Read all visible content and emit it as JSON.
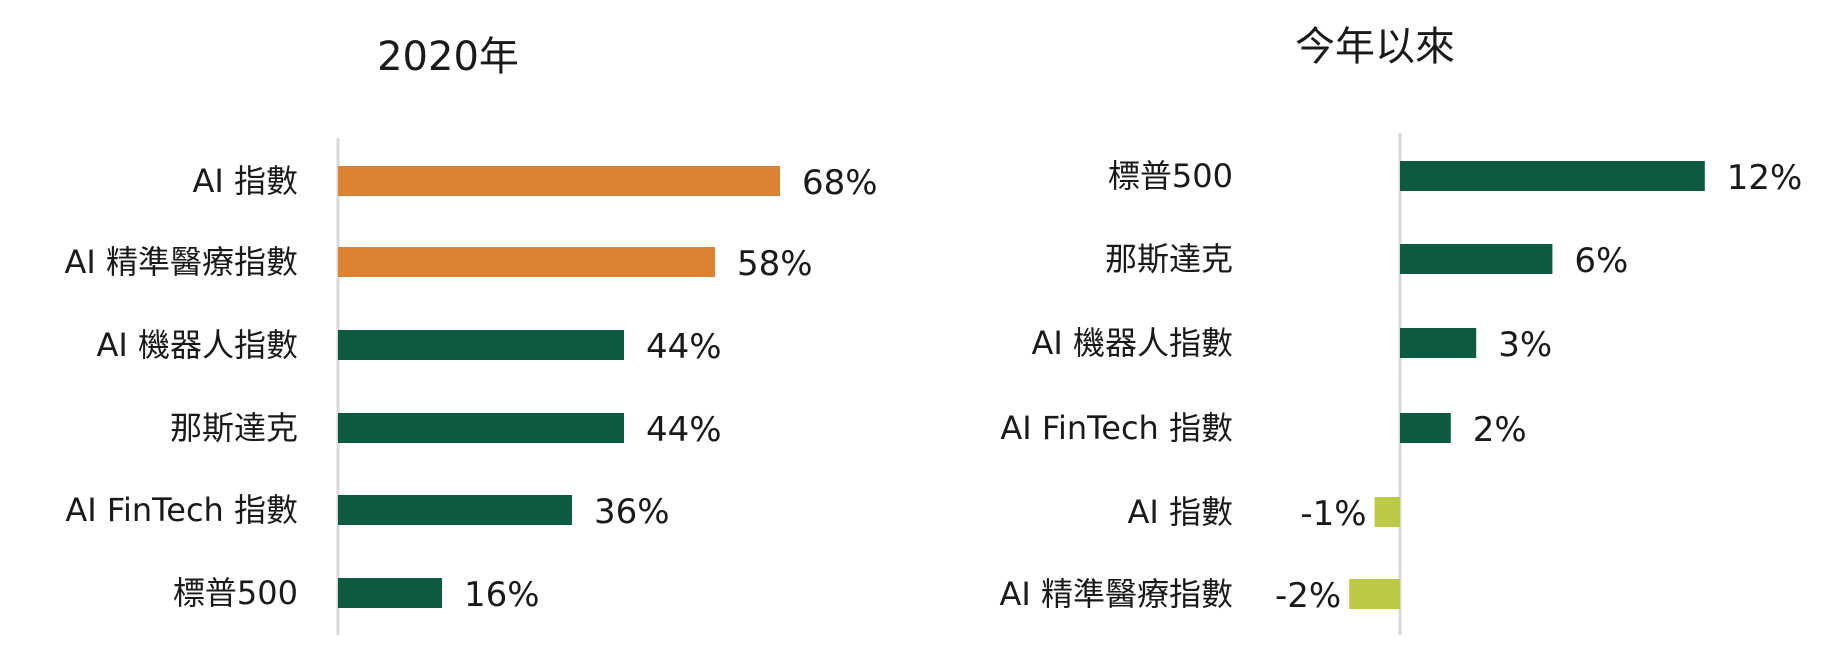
{
  "chart_data": [
    {
      "type": "bar",
      "orientation": "horizontal",
      "title": "2020年",
      "categories": [
        "AI 指數",
        "AI 精準醫療指數",
        "AI 機器人指數",
        "那斯達克",
        "AI FinTech 指數",
        "標普500"
      ],
      "values": [
        68,
        58,
        44,
        44,
        36,
        16
      ],
      "value_labels": [
        "68%",
        "58%",
        "44%",
        "44%",
        "36%",
        "16%"
      ],
      "bar_colors": [
        "#dc8232",
        "#dc8232",
        "#0b5a41",
        "#0b5a41",
        "#0b5a41",
        "#0b5a41"
      ],
      "xlim": [
        0,
        100
      ],
      "unit": "%",
      "grid": false,
      "legend": "none"
    },
    {
      "type": "bar",
      "orientation": "horizontal",
      "title": "今年以來",
      "categories": [
        "標普500",
        "那斯達克",
        "AI 機器人指數",
        "AI FinTech 指數",
        "AI 指數",
        "AI 精準醫療指數"
      ],
      "values": [
        12,
        6,
        3,
        2,
        -1,
        -2
      ],
      "value_labels": [
        "12%",
        "6%",
        "3%",
        "2%",
        "-1%",
        "-2%"
      ],
      "bar_colors": [
        "#0b5a41",
        "#0b5a41",
        "#0b5a41",
        "#0b5a41",
        "#bcc846",
        "#bcc846"
      ],
      "xlim": [
        -2.4,
        14.5
      ],
      "unit": "%",
      "grid": false,
      "legend": "none"
    }
  ]
}
